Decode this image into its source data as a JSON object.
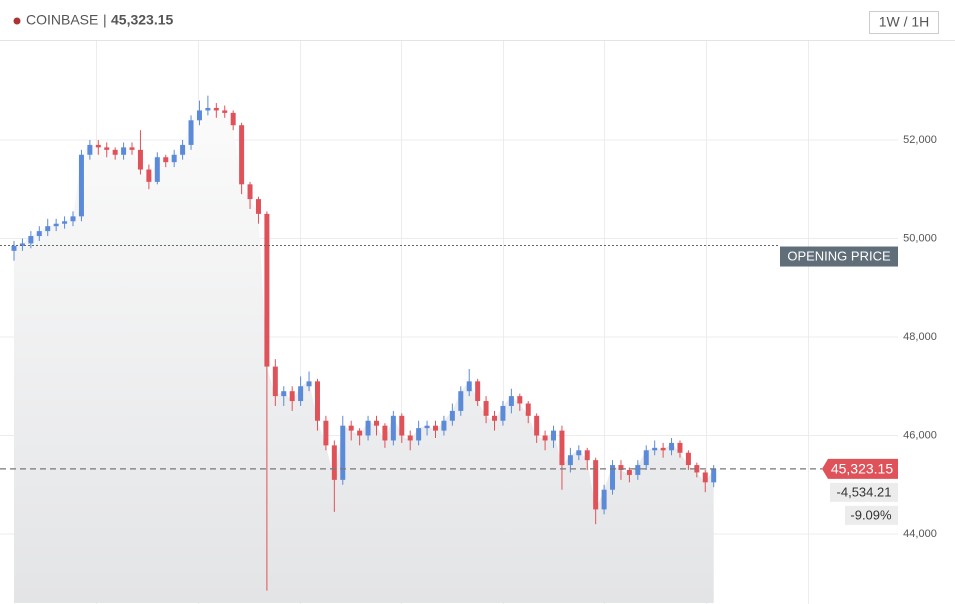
{
  "chart_data": {
    "type": "candlestick",
    "title": "COINBASE",
    "interval_button": "1W / 1H",
    "last_price": {
      "value": 45323.15,
      "label": "45,323.15"
    },
    "change": {
      "value": -4534.21,
      "label": "-4,534.21"
    },
    "change_pct": {
      "value": -9.09,
      "label": "-9.09%"
    },
    "opening_price": {
      "value": 49857.36,
      "label": "OPENING PRICE"
    },
    "up_color": "#5b8ad8",
    "down_color": "#e0525a",
    "ylim": [
      42600,
      54030
    ],
    "yticks": [
      {
        "value": 44000,
        "label": "44,000"
      },
      {
        "value": 46000,
        "label": "46,000"
      },
      {
        "value": 48000,
        "label": "48,000"
      },
      {
        "value": 50000,
        "label": "50,000"
      },
      {
        "value": 52000,
        "label": "52,000"
      }
    ],
    "grid": true,
    "open": [
      49750,
      49850,
      49900,
      50050,
      50150,
      50250,
      50300,
      50350,
      50450,
      51700,
      51900,
      51850,
      51800,
      51700,
      51850,
      51800,
      51400,
      51150,
      51650,
      51550,
      51700,
      51900,
      52400,
      52600,
      52650,
      52600,
      52550,
      52300,
      51100,
      50800,
      50500,
      47400,
      46800,
      46900,
      46700,
      47000,
      47100,
      46300,
      45800,
      45100,
      46200,
      46100,
      46000,
      46300,
      46200,
      45900,
      46400,
      46000,
      45900,
      46150,
      46200,
      46100,
      46300,
      46500,
      46900,
      47100,
      46700,
      46400,
      46300,
      46600,
      46800,
      46650,
      46400,
      46000,
      45900,
      46100,
      45400,
      45600,
      45700,
      45500,
      44500,
      44900,
      45400,
      45300,
      45200,
      45400,
      45700,
      45750,
      45700,
      45850,
      45650,
      45400,
      45250,
      45050
    ],
    "high": [
      49950,
      50000,
      50150,
      50250,
      50400,
      50400,
      50450,
      50550,
      51800,
      52000,
      52000,
      51950,
      51850,
      51950,
      51950,
      52200,
      51500,
      51750,
      51700,
      51800,
      52000,
      52500,
      52800,
      52900,
      52750,
      52700,
      52600,
      52350,
      51150,
      50850,
      50550,
      47550,
      47000,
      47000,
      47200,
      47300,
      47150,
      46400,
      45900,
      46400,
      46300,
      46150,
      46400,
      46400,
      46250,
      46500,
      46450,
      46100,
      46300,
      46300,
      46300,
      46400,
      46650,
      47000,
      47350,
      47150,
      46800,
      46500,
      46700,
      46950,
      46850,
      46700,
      46450,
      46100,
      46200,
      46200,
      45750,
      45800,
      45750,
      45550,
      45000,
      45500,
      45500,
      45350,
      45500,
      45800,
      45900,
      45850,
      45950,
      45900,
      45700,
      45450,
      45300,
      45400
    ],
    "low": [
      49550,
      49750,
      49800,
      49950,
      50050,
      50150,
      50200,
      50250,
      50350,
      51600,
      51700,
      51650,
      51600,
      51600,
      51700,
      51300,
      51000,
      51100,
      51450,
      51450,
      51600,
      51800,
      52300,
      52500,
      52450,
      52450,
      52200,
      50900,
      50600,
      50300,
      42850,
      46600,
      46600,
      46500,
      46600,
      46900,
      46100,
      45700,
      44450,
      45000,
      45900,
      45800,
      45900,
      46000,
      45750,
      45800,
      45850,
      45700,
      45800,
      46000,
      45950,
      46000,
      46200,
      46400,
      46800,
      46600,
      46250,
      46100,
      46200,
      46450,
      46500,
      46250,
      45850,
      45700,
      45750,
      44900,
      45250,
      45500,
      45300,
      44200,
      44400,
      44800,
      45100,
      45050,
      45100,
      45300,
      45600,
      45550,
      45600,
      45550,
      45300,
      45150,
      44850,
      44950
    ],
    "close": [
      49850,
      49900,
      50050,
      50150,
      50250,
      50300,
      50350,
      50450,
      51700,
      51900,
      51850,
      51800,
      51700,
      51850,
      51800,
      51400,
      51150,
      51650,
      51550,
      51700,
      51900,
      52400,
      52600,
      52650,
      52600,
      52550,
      52300,
      51100,
      50800,
      50500,
      47400,
      46800,
      46900,
      46700,
      47000,
      47100,
      46300,
      45800,
      45100,
      46200,
      46100,
      46000,
      46300,
      46200,
      45900,
      46400,
      46000,
      45900,
      46150,
      46200,
      46100,
      46300,
      46500,
      46900,
      47100,
      46700,
      46400,
      46300,
      46600,
      46800,
      46650,
      46400,
      46000,
      45900,
      46100,
      45400,
      45600,
      45700,
      45500,
      44500,
      44900,
      45400,
      45300,
      45200,
      45400,
      45700,
      45750,
      45700,
      45850,
      45650,
      45400,
      45250,
      45050,
      45323.15
    ]
  }
}
